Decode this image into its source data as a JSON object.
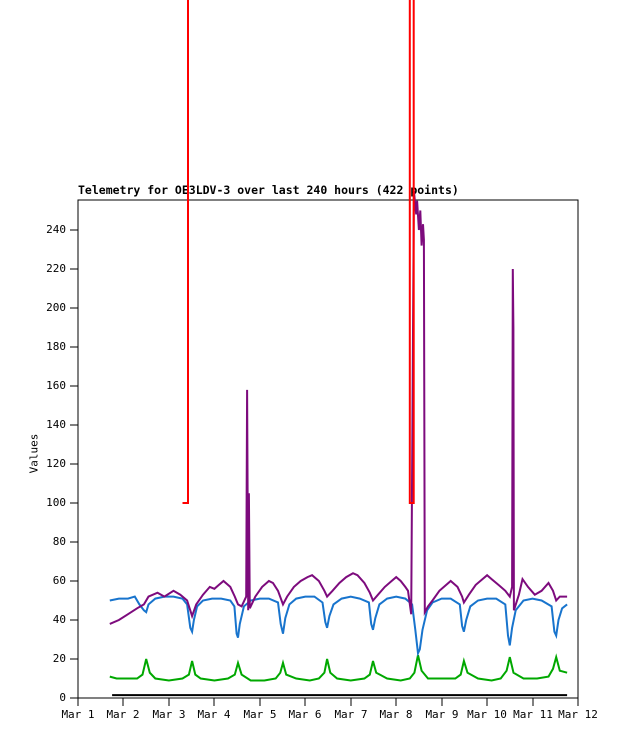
{
  "title": "Telemetry for OE3LDV-3 over last 240 hours (422 points)",
  "colors": {
    "background": "#ffffff",
    "axis": "#000000",
    "channel_blue": "#1874CD",
    "channel_green": "#00A800",
    "channel_purple": "#7D0B7D",
    "channel_red": "#FF0000",
    "channel_black": "#000000"
  },
  "chart_data": {
    "type": "line",
    "title": "Telemetry for OE3LDV-3 over last 240 hours (422 points)",
    "xlabel": "",
    "ylabel": "Values",
    "grid": false,
    "legend": "none",
    "xlim": [
      0,
      11
    ],
    "ylim": [
      0,
      255.4
    ],
    "x_unit": "days since Mar 1",
    "x_ticks": [
      0,
      1,
      2,
      3,
      4,
      5,
      6,
      7,
      8,
      9,
      10,
      11
    ],
    "x_tick_labels": [
      "Mar 1",
      "Mar 2",
      "Mar 3",
      "Mar 4",
      "Mar 5",
      "Mar 6",
      "Mar 7",
      "Mar 8",
      "Mar 9",
      "Mar 10",
      "Mar 11",
      "Mar 12"
    ],
    "y_ticks": [
      0,
      20,
      40,
      60,
      80,
      100,
      120,
      140,
      160,
      180,
      200,
      220,
      240
    ],
    "y_tick_labels": [
      "0",
      "20",
      "40",
      "60",
      "80",
      "100",
      "120",
      "140",
      "160",
      "180",
      "200",
      "220",
      "240"
    ],
    "note": "spike values exceed the drawn y-range and are rendered unclipped above the plot frame",
    "series": [
      {
        "name": "channel-black",
        "color": "#000000",
        "points": [
          [
            0.75,
            1.5
          ],
          [
            10.76,
            1.5
          ]
        ]
      },
      {
        "name": "channel-green",
        "color": "#00A800",
        "points": [
          [
            0.7,
            11
          ],
          [
            0.85,
            10
          ],
          [
            1.0,
            10
          ],
          [
            1.3,
            10
          ],
          [
            1.42,
            12
          ],
          [
            1.5,
            20
          ],
          [
            1.58,
            13
          ],
          [
            1.7,
            10
          ],
          [
            2.0,
            9
          ],
          [
            2.3,
            10
          ],
          [
            2.44,
            12
          ],
          [
            2.51,
            19
          ],
          [
            2.58,
            12
          ],
          [
            2.7,
            10
          ],
          [
            3.0,
            9
          ],
          [
            3.3,
            10
          ],
          [
            3.45,
            12
          ],
          [
            3.52,
            18
          ],
          [
            3.6,
            12
          ],
          [
            3.8,
            9
          ],
          [
            4.1,
            9
          ],
          [
            4.35,
            10
          ],
          [
            4.45,
            13
          ],
          [
            4.51,
            18
          ],
          [
            4.58,
            12
          ],
          [
            4.8,
            10
          ],
          [
            5.1,
            9
          ],
          [
            5.3,
            10
          ],
          [
            5.42,
            13
          ],
          [
            5.48,
            20
          ],
          [
            5.55,
            13
          ],
          [
            5.7,
            10
          ],
          [
            6.0,
            9
          ],
          [
            6.3,
            10
          ],
          [
            6.42,
            12
          ],
          [
            6.49,
            19
          ],
          [
            6.56,
            13
          ],
          [
            6.8,
            10
          ],
          [
            7.1,
            9
          ],
          [
            7.3,
            10
          ],
          [
            7.4,
            13
          ],
          [
            7.48,
            22
          ],
          [
            7.56,
            14
          ],
          [
            7.7,
            10
          ],
          [
            8.0,
            10
          ],
          [
            8.3,
            10
          ],
          [
            8.42,
            12
          ],
          [
            8.49,
            19
          ],
          [
            8.57,
            13
          ],
          [
            8.8,
            10
          ],
          [
            9.1,
            9
          ],
          [
            9.3,
            10
          ],
          [
            9.43,
            14
          ],
          [
            9.5,
            21
          ],
          [
            9.58,
            13
          ],
          [
            9.8,
            10
          ],
          [
            10.1,
            10
          ],
          [
            10.35,
            11
          ],
          [
            10.45,
            15
          ],
          [
            10.52,
            21
          ],
          [
            10.6,
            14
          ],
          [
            10.76,
            13
          ]
        ]
      },
      {
        "name": "channel-blue",
        "color": "#1874CD",
        "points": [
          [
            0.7,
            50
          ],
          [
            0.9,
            51
          ],
          [
            1.1,
            51
          ],
          [
            1.25,
            52
          ],
          [
            1.35,
            48
          ],
          [
            1.45,
            45
          ],
          [
            1.5,
            44
          ],
          [
            1.55,
            48
          ],
          [
            1.7,
            51
          ],
          [
            1.9,
            52
          ],
          [
            2.1,
            52
          ],
          [
            2.3,
            51
          ],
          [
            2.4,
            48
          ],
          [
            2.47,
            36
          ],
          [
            2.51,
            34
          ],
          [
            2.55,
            40
          ],
          [
            2.62,
            47
          ],
          [
            2.75,
            50
          ],
          [
            2.95,
            51
          ],
          [
            3.15,
            51
          ],
          [
            3.35,
            50
          ],
          [
            3.44,
            47
          ],
          [
            3.49,
            33
          ],
          [
            3.52,
            31
          ],
          [
            3.56,
            38
          ],
          [
            3.65,
            47
          ],
          [
            3.8,
            50
          ],
          [
            4.0,
            51
          ],
          [
            4.2,
            51
          ],
          [
            4.4,
            49
          ],
          [
            4.46,
            38
          ],
          [
            4.51,
            33
          ],
          [
            4.56,
            41
          ],
          [
            4.65,
            48
          ],
          [
            4.8,
            51
          ],
          [
            5.0,
            52
          ],
          [
            5.2,
            52
          ],
          [
            5.38,
            49
          ],
          [
            5.44,
            39
          ],
          [
            5.48,
            36
          ],
          [
            5.53,
            42
          ],
          [
            5.62,
            48
          ],
          [
            5.8,
            51
          ],
          [
            6.0,
            52
          ],
          [
            6.2,
            51
          ],
          [
            6.4,
            49
          ],
          [
            6.45,
            38
          ],
          [
            6.49,
            35
          ],
          [
            6.54,
            41
          ],
          [
            6.63,
            48
          ],
          [
            6.8,
            51
          ],
          [
            7.0,
            52
          ],
          [
            7.2,
            51
          ],
          [
            7.35,
            48
          ],
          [
            7.42,
            35
          ],
          [
            7.48,
            23
          ],
          [
            7.52,
            25
          ],
          [
            7.58,
            35
          ],
          [
            7.68,
            45
          ],
          [
            7.8,
            49
          ],
          [
            8.0,
            51
          ],
          [
            8.2,
            51
          ],
          [
            8.4,
            48
          ],
          [
            8.45,
            37
          ],
          [
            8.49,
            34
          ],
          [
            8.54,
            40
          ],
          [
            8.63,
            47
          ],
          [
            8.8,
            50
          ],
          [
            9.0,
            51
          ],
          [
            9.2,
            51
          ],
          [
            9.4,
            48
          ],
          [
            9.46,
            32
          ],
          [
            9.5,
            27
          ],
          [
            9.55,
            36
          ],
          [
            9.63,
            45
          ],
          [
            9.8,
            50
          ],
          [
            10.0,
            51
          ],
          [
            10.2,
            50
          ],
          [
            10.42,
            47
          ],
          [
            10.48,
            34
          ],
          [
            10.52,
            32
          ],
          [
            10.57,
            40
          ],
          [
            10.65,
            46
          ],
          [
            10.76,
            48
          ]
        ]
      },
      {
        "name": "channel-purple",
        "color": "#7D0B7D",
        "points": [
          [
            0.7,
            38
          ],
          [
            0.9,
            40
          ],
          [
            1.1,
            43
          ],
          [
            1.3,
            46
          ],
          [
            1.45,
            48
          ],
          [
            1.55,
            52
          ],
          [
            1.75,
            54
          ],
          [
            1.9,
            52
          ],
          [
            2.1,
            55
          ],
          [
            2.25,
            53
          ],
          [
            2.4,
            50
          ],
          [
            2.51,
            42
          ],
          [
            2.6,
            48
          ],
          [
            2.75,
            53
          ],
          [
            2.9,
            57
          ],
          [
            3.0,
            56
          ],
          [
            3.1,
            58
          ],
          [
            3.2,
            60
          ],
          [
            3.35,
            57
          ],
          [
            3.45,
            52
          ],
          [
            3.52,
            48
          ],
          [
            3.6,
            47
          ],
          [
            3.7,
            52
          ],
          [
            3.72,
            158
          ],
          [
            3.745,
            45
          ],
          [
            3.76,
            105
          ],
          [
            3.78,
            46
          ],
          [
            3.9,
            52
          ],
          [
            4.05,
            57
          ],
          [
            4.2,
            60
          ],
          [
            4.29,
            59
          ],
          [
            4.4,
            55
          ],
          [
            4.51,
            48
          ],
          [
            4.6,
            52
          ],
          [
            4.75,
            57
          ],
          [
            4.9,
            60
          ],
          [
            5.05,
            62
          ],
          [
            5.15,
            63
          ],
          [
            5.3,
            60
          ],
          [
            5.42,
            55
          ],
          [
            5.48,
            52
          ],
          [
            5.6,
            55
          ],
          [
            5.75,
            59
          ],
          [
            5.9,
            62
          ],
          [
            6.05,
            64
          ],
          [
            6.15,
            63
          ],
          [
            6.3,
            59
          ],
          [
            6.42,
            54
          ],
          [
            6.49,
            50
          ],
          [
            6.6,
            53
          ],
          [
            6.75,
            57
          ],
          [
            6.9,
            60
          ],
          [
            7.0,
            62
          ],
          [
            7.1,
            60
          ],
          [
            7.2,
            57
          ],
          [
            7.26,
            55
          ],
          [
            7.33,
            43
          ],
          [
            7.39,
            260
          ],
          [
            7.44,
            248
          ],
          [
            7.46,
            255
          ],
          [
            7.5,
            240
          ],
          [
            7.53,
            250
          ],
          [
            7.56,
            232
          ],
          [
            7.59,
            243
          ],
          [
            7.61,
            235
          ],
          [
            7.63,
            44
          ],
          [
            7.7,
            47
          ],
          [
            7.8,
            50
          ],
          [
            7.95,
            55
          ],
          [
            8.1,
            58
          ],
          [
            8.2,
            60
          ],
          [
            8.35,
            57
          ],
          [
            8.45,
            52
          ],
          [
            8.49,
            49
          ],
          [
            8.6,
            53
          ],
          [
            8.75,
            58
          ],
          [
            8.9,
            61
          ],
          [
            9.0,
            63
          ],
          [
            9.1,
            61
          ],
          [
            9.25,
            58
          ],
          [
            9.4,
            55
          ],
          [
            9.5,
            52
          ],
          [
            9.55,
            57
          ],
          [
            9.565,
            220
          ],
          [
            9.578,
            190
          ],
          [
            9.59,
            45
          ],
          [
            9.7,
            53
          ],
          [
            9.78,
            61
          ],
          [
            9.9,
            57
          ],
          [
            10.05,
            53
          ],
          [
            10.2,
            55
          ],
          [
            10.35,
            59
          ],
          [
            10.45,
            55
          ],
          [
            10.52,
            50
          ],
          [
            10.6,
            52
          ],
          [
            10.76,
            52
          ]
        ]
      },
      {
        "name": "channel-red",
        "color": "#FF0000",
        "polylines": [
          [
            [
              2.3,
              100
            ],
            [
              2.42,
              100
            ],
            [
              2.42,
              380
            ]
          ],
          [
            [
              7.3,
              380
            ],
            [
              7.3,
              100
            ],
            [
              7.385,
              100
            ],
            [
              7.385,
              380
            ]
          ]
        ]
      }
    ]
  }
}
